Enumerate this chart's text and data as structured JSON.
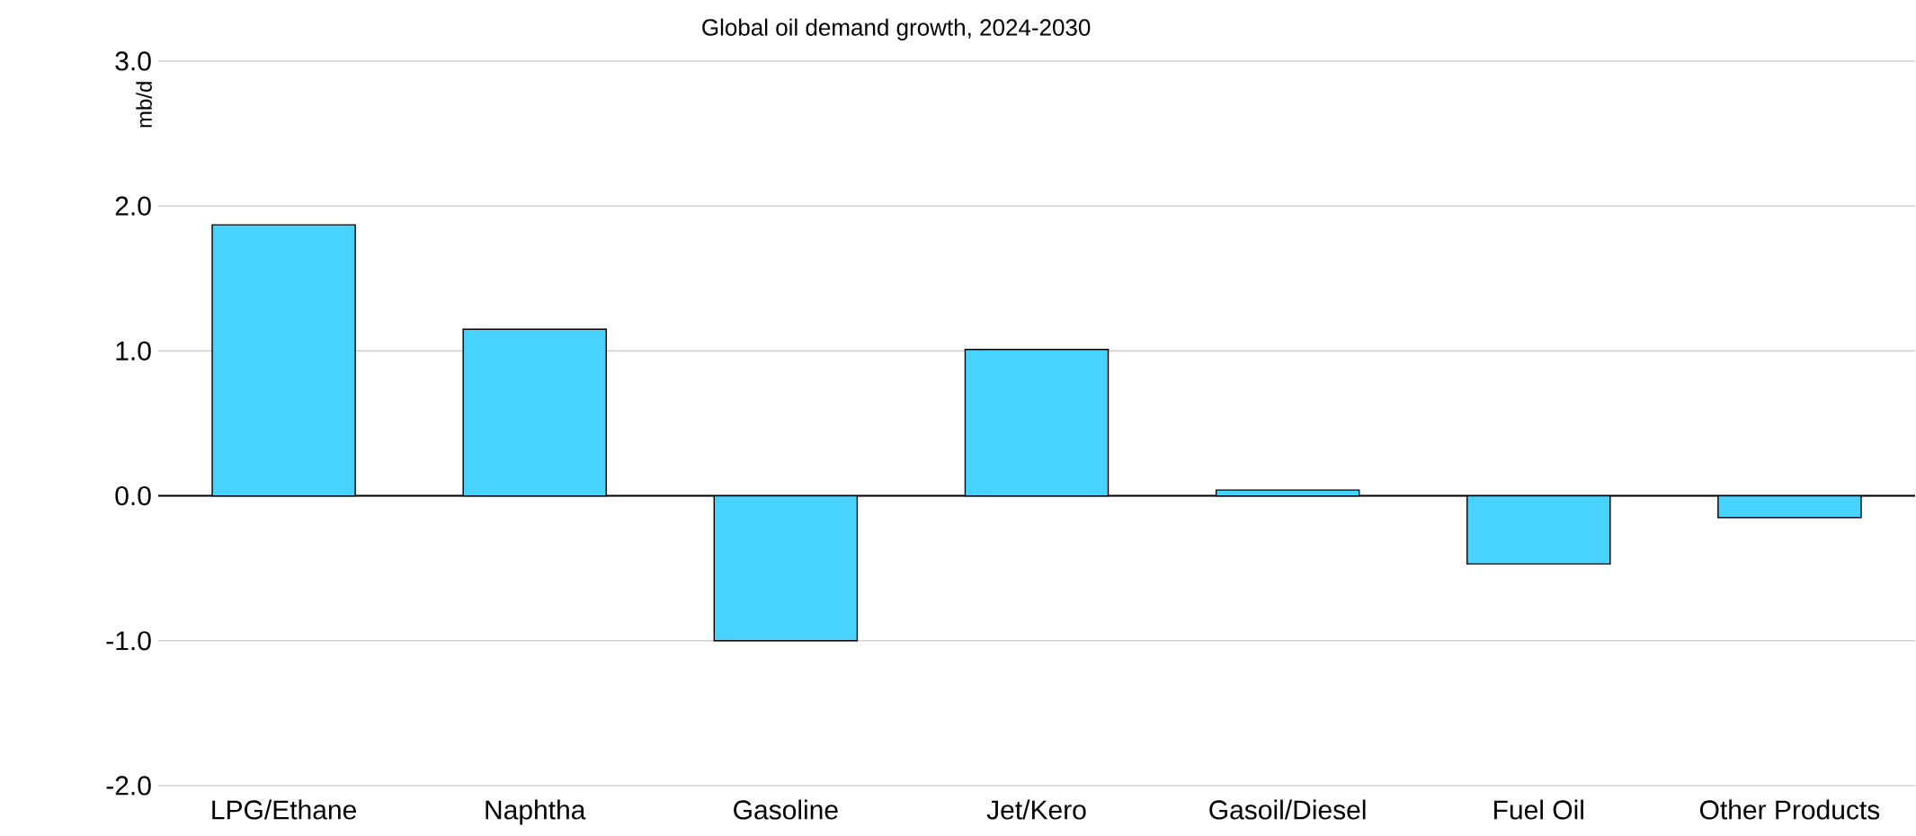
{
  "chart_data": {
    "type": "bar",
    "title": "Global oil demand growth, 2024-2030",
    "ylabel": "mb/d",
    "categories": [
      "LPG/Ethane",
      "Naphtha",
      "Gasoline",
      "Jet/Kero",
      "Gasoil/Diesel",
      "Fuel Oil",
      "Other Products"
    ],
    "values": [
      1.87,
      1.15,
      -1.0,
      1.01,
      0.04,
      -0.47,
      -0.15
    ],
    "color": "#48d3ff",
    "ylim": [
      -2.0,
      3.0
    ],
    "yticks": [
      {
        "value": -2,
        "label": "-2.0"
      },
      {
        "value": -1,
        "label": "-1.0"
      },
      {
        "value": 0,
        "label": "0.0"
      },
      {
        "value": 1,
        "label": "1.0"
      },
      {
        "value": 2,
        "label": "2.0"
      },
      {
        "value": 3,
        "label": "3.0"
      }
    ],
    "grid": "y"
  }
}
